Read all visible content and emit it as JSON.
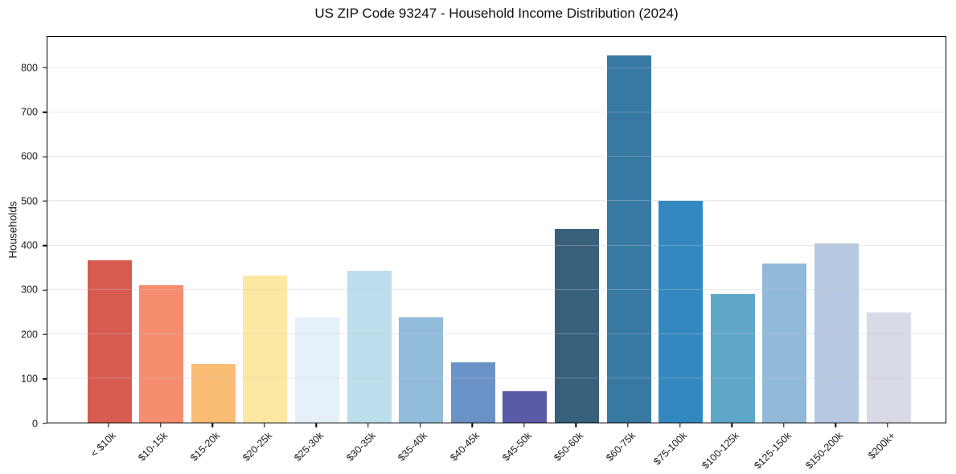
{
  "chart_data": {
    "type": "bar",
    "title": "US ZIP Code 93247 - Household Income Distribution (2024)",
    "xlabel": "",
    "ylabel": "Households",
    "categories": [
      "< $10k",
      "$10-15k",
      "$15-20k",
      "$20-25k",
      "$25-30k",
      "$30-35k",
      "$35-40k",
      "$40-45k",
      "$45-50k",
      "$50-60k",
      "$60-75k",
      "$75-100k",
      "$100-125k",
      "$125-150k",
      "$150-200k",
      "$200k+"
    ],
    "values": [
      367,
      311,
      133,
      332,
      238,
      343,
      237,
      136,
      70,
      437,
      829,
      501,
      291,
      360,
      405,
      249
    ],
    "bar_colors": [
      "#d85b52",
      "#f58d6e",
      "#fbbc74",
      "#fce8a3",
      "#e4f1f8",
      "#bddeec",
      "#92bcdc",
      "#6a92c6",
      "#5a5aa8",
      "#37607a",
      "#3779a3",
      "#3389bf",
      "#5ea7c9",
      "#93b9d8",
      "#b7c9e0",
      "#d8dae6"
    ],
    "yticks": [
      0,
      100,
      200,
      300,
      400,
      500,
      600,
      700,
      800
    ],
    "ylim": [
      0,
      871
    ],
    "grid": "horizontal",
    "legend": "none",
    "background_color": "#ffffff",
    "axis_color": "#000000",
    "gridline_color": "#e8e8e8",
    "x_tick_rotation_deg": 45
  }
}
